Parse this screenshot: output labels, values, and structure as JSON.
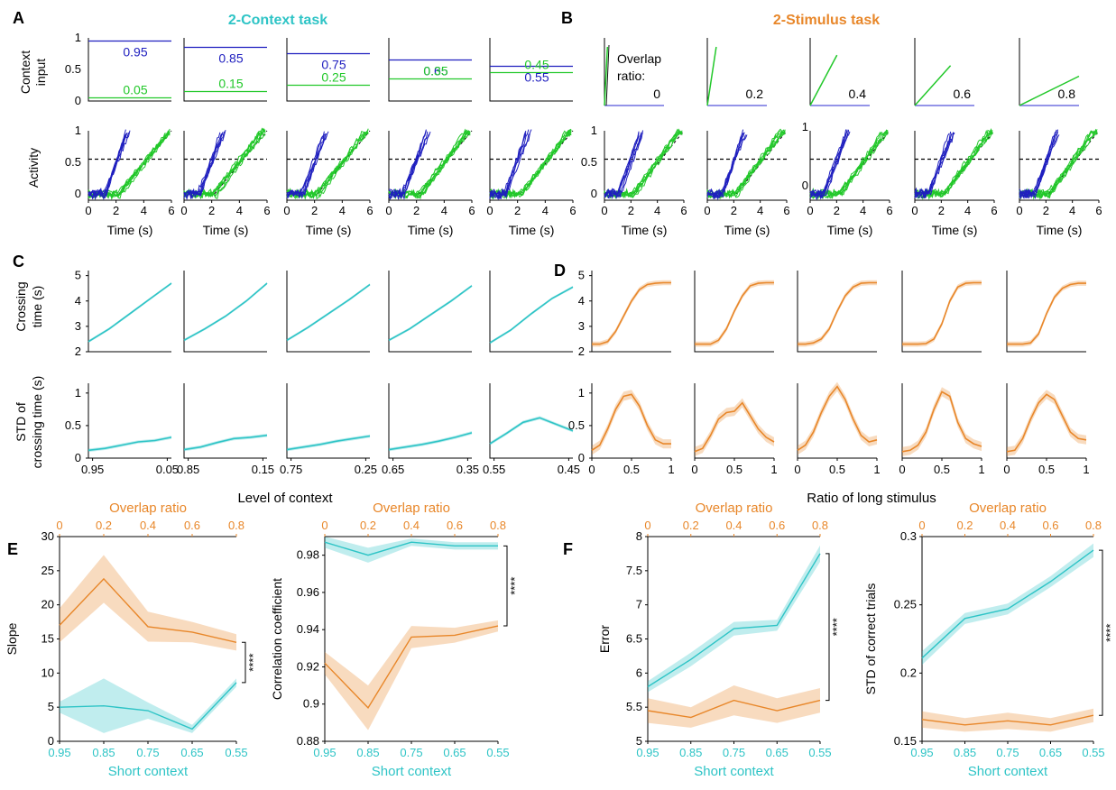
{
  "colors": {
    "cyan": "#2ec4c6",
    "orange": "#e8872a",
    "blue": "#1f1fbf",
    "green": "#22c82a",
    "axis": "#000000"
  },
  "titles": {
    "a": "2-Context task",
    "b": "2-Stimulus task"
  },
  "panel_letters": [
    "A",
    "B",
    "C",
    "D",
    "E",
    "F"
  ],
  "labels": {
    "context_input": "Context input",
    "context_input_line1": "Context",
    "context_input_line2": "input",
    "activity": "Activity",
    "time": "Time (s)",
    "crossing_time": "Crossing time (s)",
    "crossing_time_line1": "Crossing",
    "crossing_time_line2": "time (s)",
    "std_crossing": "STD of crossing time (s)",
    "std_crossing_line1": "STD of",
    "std_crossing_line2": "crossing time (s)",
    "level_of_context": "Level of context",
    "ratio_long_stimulus": "Ratio of long stimulus",
    "overlap_ratio_colon": "Overlap ratio:",
    "overlap_line1": "Overlap",
    "overlap_line2": "ratio:",
    "overlap_ratio": "Overlap ratio",
    "short_context": "Short context",
    "significance": "****"
  },
  "chart_data": [
    {
      "id": "A_context_input",
      "type": "line",
      "ylabel": "Context input",
      "y_ticks": [
        "1",
        "0.5",
        "0"
      ],
      "ylim": [
        0,
        1
      ],
      "panels": [
        {
          "high": 0.95,
          "low": 0.05,
          "high_label": "0.95",
          "low_label": "0.05"
        },
        {
          "high": 0.85,
          "low": 0.15,
          "high_label": "0.85",
          "low_label": "0.15"
        },
        {
          "high": 0.75,
          "low": 0.25,
          "high_label": "0.75",
          "low_label": "0.25"
        },
        {
          "high": 0.65,
          "low": 0.35,
          "high_label": "0.65",
          "low_label": "0.35"
        },
        {
          "high": 0.55,
          "low": 0.45,
          "high_label": "0.55",
          "low_label": "0.45"
        }
      ]
    },
    {
      "id": "A_activity",
      "type": "line",
      "ylabel": "Activity",
      "xlabel": "Time (s)",
      "x_ticks": [
        "0",
        "2",
        "4",
        "6"
      ],
      "y_ticks": [
        "1",
        "0.5",
        "0"
      ],
      "xlim": [
        0,
        6
      ],
      "ylim": [
        -0.1,
        1
      ],
      "threshold": 0.55,
      "short_onset": 1.0,
      "short_reach": 3.0,
      "long_onset": 2.2,
      "long_reach": 5.8,
      "series": [
        {
          "color": "blue"
        },
        {
          "color": "green"
        }
      ]
    },
    {
      "id": "B_stimulus",
      "type": "line",
      "overlap_ratios": [
        "0",
        "0.2",
        "0.4",
        "0.6",
        "0.8"
      ],
      "green_end_y": [
        1.0,
        1.0,
        0.86,
        0.68,
        0.5
      ],
      "green_end_x": [
        0.05,
        0.15,
        0.45,
        0.6,
        1.0
      ]
    },
    {
      "id": "B_activity",
      "type": "line",
      "xlabel": "Time (s)",
      "x_ticks": [
        "0",
        "2",
        "4",
        "6"
      ],
      "y_ticks_first": [
        "1",
        "0.5",
        "0"
      ],
      "y_ticks_middle": [
        "1",
        "0"
      ],
      "xlim": [
        0,
        6
      ],
      "ylim": [
        -0.1,
        1
      ],
      "threshold": 0.55
    },
    {
      "id": "C_crossing_time",
      "type": "line",
      "ylabel": "Crossing time (s)",
      "y_ticks": [
        "5",
        "4",
        "3",
        "2"
      ],
      "ylim": [
        2,
        5.2
      ],
      "x": [
        0,
        0.25,
        0.5,
        0.75,
        1
      ],
      "panels": [
        {
          "x_ticks": [
            "0.95",
            "0.05"
          ],
          "values": [
            2.4,
            2.9,
            3.5,
            4.1,
            4.7
          ]
        },
        {
          "x_ticks": [
            "0.85",
            "0.15"
          ],
          "values": [
            2.45,
            2.9,
            3.4,
            4.0,
            4.7
          ]
        },
        {
          "x_ticks": [
            "0.75",
            "0.25"
          ],
          "values": [
            2.45,
            2.95,
            3.5,
            4.05,
            4.65
          ]
        },
        {
          "x_ticks": [
            "0.65",
            "0.35"
          ],
          "values": [
            2.45,
            2.9,
            3.45,
            4.0,
            4.6
          ]
        },
        {
          "x_ticks": [
            "0.55",
            "0.45"
          ],
          "values": [
            2.35,
            2.85,
            3.5,
            4.1,
            4.55
          ]
        }
      ]
    },
    {
      "id": "C_std",
      "type": "line",
      "ylabel": "STD of crossing time (s)",
      "xlabel": "Level of context",
      "y_ticks": [
        "1",
        "0.5",
        "0"
      ],
      "ylim": [
        0,
        1.15
      ],
      "x": [
        0,
        0.2,
        0.4,
        0.6,
        0.8,
        1
      ],
      "panels": [
        {
          "x_ticks": [
            "0.95",
            "0.05"
          ],
          "values": [
            0.12,
            0.15,
            0.2,
            0.25,
            0.27,
            0.32
          ]
        },
        {
          "x_ticks": [
            "0.85",
            "0.15"
          ],
          "values": [
            0.13,
            0.17,
            0.24,
            0.3,
            0.32,
            0.35
          ]
        },
        {
          "x_ticks": [
            "0.75",
            "0.25"
          ],
          "values": [
            0.13,
            0.17,
            0.21,
            0.26,
            0.3,
            0.34
          ]
        },
        {
          "x_ticks": [
            "0.65",
            "0.35"
          ],
          "values": [
            0.13,
            0.17,
            0.21,
            0.26,
            0.32,
            0.39
          ]
        },
        {
          "x_ticks": [
            "0.55",
            "0.45"
          ],
          "values": [
            0.22,
            0.38,
            0.55,
            0.62,
            0.52,
            0.42
          ]
        }
      ]
    },
    {
      "id": "D_crossing_time",
      "type": "line",
      "y_ticks": [
        "5",
        "4",
        "3",
        "2"
      ],
      "ylim": [
        2,
        5.2
      ],
      "x": [
        0,
        0.1,
        0.2,
        0.3,
        0.4,
        0.5,
        0.6,
        0.7,
        0.8,
        0.9,
        1
      ],
      "panels": [
        {
          "values": [
            2.3,
            2.3,
            2.4,
            2.8,
            3.4,
            4.0,
            4.45,
            4.65,
            4.7,
            4.72,
            4.72
          ]
        },
        {
          "values": [
            2.3,
            2.3,
            2.3,
            2.45,
            2.9,
            3.6,
            4.2,
            4.6,
            4.7,
            4.72,
            4.72
          ]
        },
        {
          "values": [
            2.3,
            2.3,
            2.35,
            2.5,
            2.9,
            3.6,
            4.2,
            4.55,
            4.7,
            4.72,
            4.72
          ]
        },
        {
          "values": [
            2.3,
            2.3,
            2.3,
            2.32,
            2.5,
            3.1,
            4.0,
            4.55,
            4.7,
            4.72,
            4.72
          ]
        },
        {
          "values": [
            2.3,
            2.3,
            2.3,
            2.35,
            2.7,
            3.5,
            4.15,
            4.5,
            4.65,
            4.7,
            4.7
          ]
        }
      ]
    },
    {
      "id": "D_std",
      "type": "line",
      "xlabel": "Ratio of long stimulus",
      "x_ticks": [
        "0",
        "0.5",
        "1"
      ],
      "y_ticks": [
        "1",
        "0.5",
        "0"
      ],
      "ylim": [
        0,
        1.15
      ],
      "x": [
        0,
        0.1,
        0.2,
        0.3,
        0.4,
        0.5,
        0.6,
        0.7,
        0.8,
        0.9,
        1
      ],
      "panels": [
        {
          "values": [
            0.12,
            0.2,
            0.45,
            0.75,
            0.95,
            0.98,
            0.8,
            0.5,
            0.28,
            0.22,
            0.22
          ]
        },
        {
          "values": [
            0.1,
            0.15,
            0.35,
            0.6,
            0.7,
            0.72,
            0.85,
            0.65,
            0.45,
            0.32,
            0.25
          ]
        },
        {
          "values": [
            0.12,
            0.2,
            0.4,
            0.7,
            0.95,
            1.1,
            0.9,
            0.6,
            0.35,
            0.25,
            0.28
          ]
        },
        {
          "values": [
            0.1,
            0.12,
            0.2,
            0.4,
            0.75,
            1.02,
            0.95,
            0.55,
            0.3,
            0.22,
            0.18
          ]
        },
        {
          "values": [
            0.1,
            0.12,
            0.3,
            0.6,
            0.85,
            0.98,
            0.9,
            0.65,
            0.4,
            0.3,
            0.28
          ]
        }
      ]
    },
    {
      "id": "E_slope",
      "type": "line",
      "ylabel": "Slope",
      "xlabel": "Short context",
      "top_xlabel": "Overlap ratio",
      "x_ticks": [
        "0.95",
        "0.85",
        "0.75",
        "0.65",
        "0.55"
      ],
      "top_x_ticks": [
        "0",
        "0.2",
        "0.4",
        "0.6",
        "0.8"
      ],
      "y_ticks": [
        "30",
        "25",
        "20",
        "15",
        "10",
        "5",
        "0"
      ],
      "ylim": [
        0,
        30
      ],
      "series": [
        {
          "color": "orange",
          "values": [
            17,
            23.8,
            16.8,
            16,
            14.5
          ],
          "spread": [
            2.5,
            3.5,
            2.2,
            1.5,
            1.2
          ]
        },
        {
          "color": "cyan",
          "values": [
            5,
            5.2,
            4.5,
            1.8,
            8.6
          ],
          "spread": [
            0.8,
            4,
            1.2,
            0.6,
            0.6
          ]
        }
      ]
    },
    {
      "id": "E_corr",
      "type": "line",
      "ylabel": "Correlation coefficient",
      "xlabel": "Short context",
      "top_xlabel": "Overlap ratio",
      "x_ticks": [
        "0.95",
        "0.85",
        "0.75",
        "0.65",
        "0.55"
      ],
      "top_x_ticks": [
        "0",
        "0.2",
        "0.4",
        "0.6",
        "0.8"
      ],
      "y_ticks": [
        "0.98",
        "0.96",
        "0.94",
        "0.92",
        "0.9",
        "0.88"
      ],
      "ylim": [
        0.88,
        0.99
      ],
      "series": [
        {
          "color": "cyan",
          "values": [
            0.987,
            0.98,
            0.987,
            0.985,
            0.985
          ],
          "spread": [
            0.003,
            0.004,
            0.002,
            0.002,
            0.002
          ]
        },
        {
          "color": "orange",
          "values": [
            0.922,
            0.898,
            0.936,
            0.937,
            0.942
          ],
          "spread": [
            0.006,
            0.012,
            0.006,
            0.004,
            0.003
          ]
        }
      ]
    },
    {
      "id": "F_error",
      "type": "line",
      "ylabel": "Error",
      "xlabel": "Short context",
      "top_xlabel": "Overlap ratio",
      "x_ticks": [
        "0.95",
        "0.85",
        "0.75",
        "0.65",
        "0.55"
      ],
      "top_x_ticks": [
        "0",
        "0.2",
        "0.4",
        "0.6",
        "0.8"
      ],
      "y_ticks": [
        "8",
        "7.5",
        "7",
        "6.5",
        "6",
        "5.5",
        "5"
      ],
      "ylim": [
        5,
        8
      ],
      "series": [
        {
          "color": "cyan",
          "values": [
            5.8,
            6.2,
            6.65,
            6.7,
            7.75
          ],
          "spread": [
            0.08,
            0.1,
            0.1,
            0.08,
            0.12
          ]
        },
        {
          "color": "orange",
          "values": [
            5.45,
            5.35,
            5.6,
            5.45,
            5.6
          ],
          "spread": [
            0.18,
            0.15,
            0.22,
            0.18,
            0.18
          ]
        }
      ]
    },
    {
      "id": "F_std_correct",
      "type": "line",
      "ylabel": "STD of correct trials",
      "xlabel": "Short context",
      "top_xlabel": "Overlap ratio",
      "x_ticks": [
        "0.95",
        "0.85",
        "0.75",
        "0.65",
        "0.55"
      ],
      "top_x_ticks": [
        "0",
        "0.2",
        "0.4",
        "0.6",
        "0.8"
      ],
      "y_ticks": [
        "0.3",
        "0.25",
        "0.2",
        "0.15"
      ],
      "ylim": [
        0.15,
        0.3
      ],
      "series": [
        {
          "color": "cyan",
          "values": [
            0.211,
            0.24,
            0.247,
            0.267,
            0.29
          ],
          "spread": [
            0.005,
            0.004,
            0.004,
            0.004,
            0.005
          ]
        },
        {
          "color": "orange",
          "values": [
            0.166,
            0.162,
            0.165,
            0.162,
            0.169
          ],
          "spread": [
            0.006,
            0.005,
            0.006,
            0.005,
            0.005
          ]
        }
      ]
    }
  ]
}
